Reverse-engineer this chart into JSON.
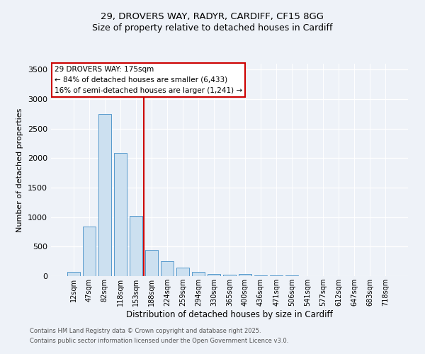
{
  "title_line1": "29, DROVERS WAY, RADYR, CARDIFF, CF15 8GG",
  "title_line2": "Size of property relative to detached houses in Cardiff",
  "xlabel": "Distribution of detached houses by size in Cardiff",
  "ylabel": "Number of detached properties",
  "bar_labels": [
    "12sqm",
    "47sqm",
    "82sqm",
    "118sqm",
    "153sqm",
    "188sqm",
    "224sqm",
    "259sqm",
    "294sqm",
    "330sqm",
    "365sqm",
    "400sqm",
    "436sqm",
    "471sqm",
    "506sqm",
    "541sqm",
    "577sqm",
    "612sqm",
    "647sqm",
    "683sqm",
    "718sqm"
  ],
  "bar_values": [
    75,
    840,
    2750,
    2090,
    1020,
    450,
    250,
    150,
    75,
    35,
    20,
    40,
    15,
    10,
    8,
    5,
    3,
    2,
    2,
    1,
    1
  ],
  "bar_color": "#cce0f0",
  "bar_edge_color": "#5599cc",
  "vline_index": 4.5,
  "vline_color": "#cc0000",
  "annotation_text": "29 DROVERS WAY: 175sqm\n← 84% of detached houses are smaller (6,433)\n16% of semi-detached houses are larger (1,241) →",
  "annotation_box_color": "#cc0000",
  "ylim": [
    0,
    3600
  ],
  "yticks": [
    0,
    500,
    1000,
    1500,
    2000,
    2500,
    3000,
    3500
  ],
  "footnote1": "Contains HM Land Registry data © Crown copyright and database right 2025.",
  "footnote2": "Contains public sector information licensed under the Open Government Licence v3.0.",
  "background_color": "#eef2f8",
  "plot_background": "#eef2f8",
  "title1_fontsize": 9.5,
  "title2_fontsize": 9,
  "xlabel_fontsize": 8.5,
  "ylabel_fontsize": 8,
  "tick_fontsize": 7,
  "annotation_fontsize": 7.5
}
